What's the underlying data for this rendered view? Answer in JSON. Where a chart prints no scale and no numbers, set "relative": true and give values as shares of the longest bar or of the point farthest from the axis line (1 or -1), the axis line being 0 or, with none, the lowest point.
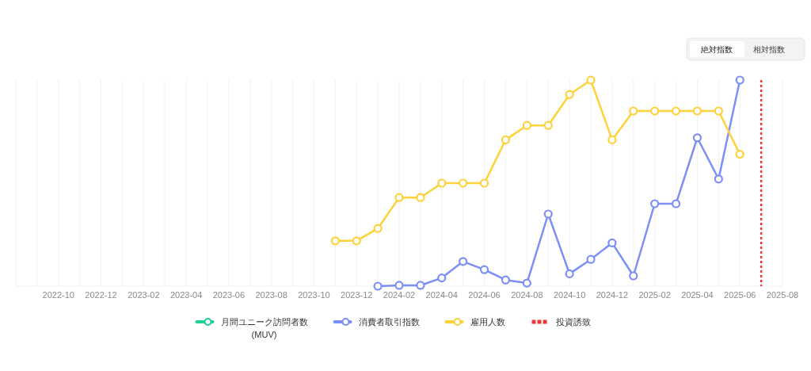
{
  "chart_data": {
    "type": "line",
    "relative": true,
    "marker": "circle",
    "line_style": "solid",
    "grid": "x",
    "legend": "bottom",
    "annotations": [
      "絶対指数",
      "相対指数"
    ],
    "xlim": [
      "2022-08",
      "2025-08"
    ],
    "xticks": [
      {
        "value": "2022-08",
        "label": null
      },
      {
        "value": "2022-09",
        "label": null
      },
      "2022-10",
      {
        "value": "2022-11",
        "label": null
      },
      "2022-12",
      {
        "value": "2023-01",
        "label": null
      },
      "2023-02",
      {
        "value": "2023-03",
        "label": null
      },
      "2023-04",
      {
        "value": "2023-05",
        "label": null
      },
      "2023-06",
      {
        "value": "2023-07",
        "label": null
      },
      "2023-08",
      {
        "value": "2023-09",
        "label": null
      },
      "2023-10",
      {
        "value": "2023-11",
        "label": null
      },
      "2023-12",
      {
        "value": "2024-01",
        "label": null
      },
      "2024-02",
      {
        "value": "2024-03",
        "label": null
      },
      "2024-04",
      {
        "value": "2024-05",
        "label": null
      },
      "2024-06",
      {
        "value": "2024-07",
        "label": null
      },
      "2024-08",
      {
        "value": "2024-09",
        "label": null
      },
      "2024-10",
      {
        "value": "2024-11",
        "label": null
      },
      "2024-12",
      {
        "value": "2025-01",
        "label": null
      },
      "2025-02",
      {
        "value": "2025-03",
        "label": null
      },
      "2025-04",
      {
        "value": "2025-05",
        "label": null
      },
      "2025-06",
      {
        "value": "2025-07",
        "label": null
      },
      "2025-08"
    ],
    "series": [
      {
        "name": "月間ユニーク訪問者数\n(MUV)",
        "color": "#1fcf9a"
      },
      {
        "name": "消費者取引指数",
        "color": "#7b8ff7",
        "x": [
          "2024-01",
          "2024-02",
          "2024-03",
          "2024-04",
          "2024-05",
          "2024-06",
          "2024-07",
          "2024-08",
          "2024-09",
          "2024-10",
          "2024-11",
          "2024-12",
          "2025-01",
          "2025-02",
          "2025-03",
          "2025-04",
          "2025-05",
          "2025-06"
        ],
        "values": [
          0,
          0.004,
          0.004,
          0.04,
          0.12,
          0.08,
          0.03,
          0.015,
          0.35,
          0.06,
          0.13,
          0.21,
          0.05,
          0.4,
          0.4,
          0.72,
          0.52,
          1
        ]
      },
      {
        "name": "雇用人数",
        "color": "#fdd23a",
        "x": [
          "2023-11",
          "2023-12",
          "2024-01",
          "2024-02",
          "2024-03",
          "2024-04",
          "2024-05",
          "2024-06",
          "2024-07",
          "2024-08",
          "2024-09",
          "2024-10",
          "2024-11",
          "2024-12",
          "2025-01",
          "2025-02",
          "2025-03",
          "2025-04",
          "2025-05",
          "2025-06"
        ],
        "values": [
          0.22,
          0.22,
          0.28,
          0.43,
          0.43,
          0.5,
          0.5,
          0.5,
          0.71,
          0.78,
          0.78,
          0.93,
          1,
          0.71,
          0.85,
          0.85,
          0.85,
          0.85,
          0.85,
          0.64
        ]
      }
    ],
    "ref_lines": [
      {
        "axis": "x",
        "value": "2025-07",
        "label": "投資誘致",
        "color": "#e83a3a",
        "line_style": "dotted"
      }
    ]
  }
}
